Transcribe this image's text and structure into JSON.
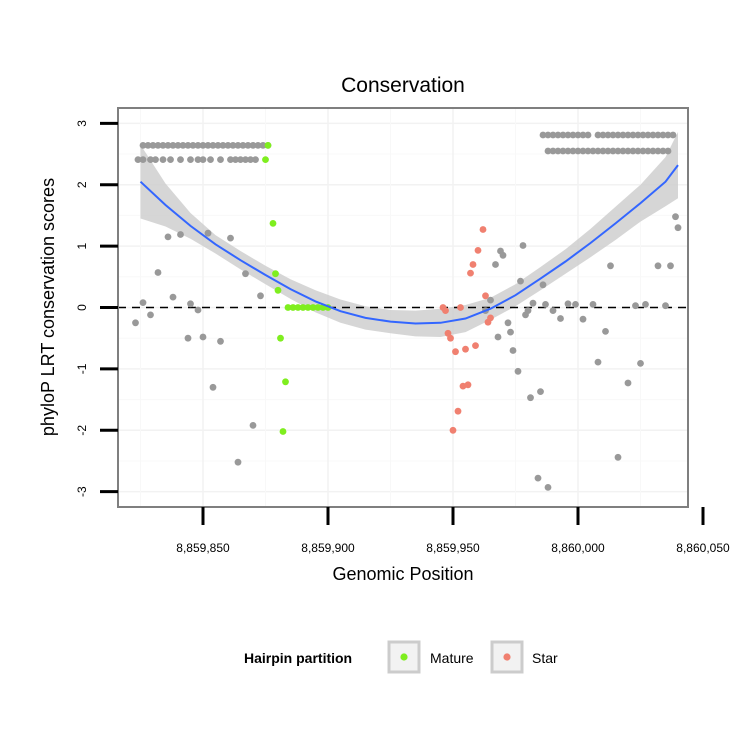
{
  "chart_data": {
    "type": "scatter",
    "title": "Conservation",
    "xlabel": "Genomic Position",
    "ylabel": "phyloP LRT conservation scores",
    "xlim": [
      8859816,
      8860044
    ],
    "ylim": [
      -3.25,
      3.25
    ],
    "x_ticks": [
      8859850,
      8859900,
      8859950,
      8860000,
      8860050
    ],
    "x_tick_labels": [
      "8,859,850",
      "8,859,900",
      "8,859,950",
      "8,860,000",
      "8,860,050"
    ],
    "y_ticks": [
      -3,
      -2,
      -1,
      0,
      1,
      2,
      3
    ],
    "y_tick_labels": [
      "-3",
      "-2",
      "-1",
      "0",
      "1",
      "2",
      "3"
    ],
    "reference_line": {
      "y": 0,
      "style": "dashed"
    },
    "grid": true,
    "legend": {
      "title": "Hairpin partition",
      "position": "bottom",
      "entries": [
        {
          "label": "Mature",
          "color": "#7FEE1F"
        },
        {
          "label": "Star",
          "color": "#F08070"
        }
      ]
    },
    "colors": {
      "other": "#999999",
      "mature": "#7FEE1F",
      "star": "#F08070",
      "smooth": "#3366FF",
      "band": "#CCCCCC"
    },
    "series": [
      {
        "name": "Other",
        "color": "#999999",
        "points": [
          [
            8859826,
            2.64
          ],
          [
            8859828,
            2.64
          ],
          [
            8859830,
            2.64
          ],
          [
            8859832,
            2.64
          ],
          [
            8859834,
            2.64
          ],
          [
            8859836,
            2.64
          ],
          [
            8859838,
            2.64
          ],
          [
            8859840,
            2.64
          ],
          [
            8859842,
            2.64
          ],
          [
            8859844,
            2.64
          ],
          [
            8859846,
            2.64
          ],
          [
            8859848,
            2.64
          ],
          [
            8859850,
            2.64
          ],
          [
            8859852,
            2.64
          ],
          [
            8859854,
            2.64
          ],
          [
            8859856,
            2.64
          ],
          [
            8859858,
            2.64
          ],
          [
            8859860,
            2.64
          ],
          [
            8859862,
            2.64
          ],
          [
            8859864,
            2.64
          ],
          [
            8859866,
            2.64
          ],
          [
            8859868,
            2.64
          ],
          [
            8859870,
            2.64
          ],
          [
            8859872,
            2.64
          ],
          [
            8859874,
            2.64
          ],
          [
            8859876,
            2.64
          ],
          [
            8859824,
            2.41
          ],
          [
            8859826,
            2.41
          ],
          [
            8859829,
            2.41
          ],
          [
            8859831,
            2.41
          ],
          [
            8859834,
            2.41
          ],
          [
            8859837,
            2.41
          ],
          [
            8859841,
            2.41
          ],
          [
            8859845,
            2.41
          ],
          [
            8859848,
            2.41
          ],
          [
            8859850,
            2.41
          ],
          [
            8859853,
            2.41
          ],
          [
            8859857,
            2.41
          ],
          [
            8859861,
            2.41
          ],
          [
            8859863,
            2.41
          ],
          [
            8859865,
            2.41
          ],
          [
            8859867,
            2.41
          ],
          [
            8859869,
            2.41
          ],
          [
            8859871,
            2.41
          ],
          [
            8859986,
            2.81
          ],
          [
            8859988,
            2.81
          ],
          [
            8859990,
            2.81
          ],
          [
            8859992,
            2.81
          ],
          [
            8859994,
            2.81
          ],
          [
            8859996,
            2.81
          ],
          [
            8859998,
            2.81
          ],
          [
            8860000,
            2.81
          ],
          [
            8860002,
            2.81
          ],
          [
            8860004,
            2.81
          ],
          [
            8860008,
            2.81
          ],
          [
            8860010,
            2.81
          ],
          [
            8860012,
            2.81
          ],
          [
            8860014,
            2.81
          ],
          [
            8860016,
            2.81
          ],
          [
            8860018,
            2.81
          ],
          [
            8860020,
            2.81
          ],
          [
            8860022,
            2.81
          ],
          [
            8860024,
            2.81
          ],
          [
            8860026,
            2.81
          ],
          [
            8860028,
            2.81
          ],
          [
            8860030,
            2.81
          ],
          [
            8860032,
            2.81
          ],
          [
            8860034,
            2.81
          ],
          [
            8860036,
            2.81
          ],
          [
            8860038,
            2.81
          ],
          [
            8859988,
            2.55
          ],
          [
            8859990,
            2.55
          ],
          [
            8859992,
            2.55
          ],
          [
            8859994,
            2.55
          ],
          [
            8859996,
            2.55
          ],
          [
            8859998,
            2.55
          ],
          [
            8860000,
            2.55
          ],
          [
            8860002,
            2.55
          ],
          [
            8860004,
            2.55
          ],
          [
            8860006,
            2.55
          ],
          [
            8860008,
            2.55
          ],
          [
            8860010,
            2.55
          ],
          [
            8860012,
            2.55
          ],
          [
            8860014,
            2.55
          ],
          [
            8860016,
            2.55
          ],
          [
            8860018,
            2.55
          ],
          [
            8860020,
            2.55
          ],
          [
            8860022,
            2.55
          ],
          [
            8860024,
            2.55
          ],
          [
            8860026,
            2.55
          ],
          [
            8860028,
            2.55
          ],
          [
            8860030,
            2.55
          ],
          [
            8860032,
            2.55
          ],
          [
            8860034,
            2.55
          ],
          [
            8860036,
            2.55
          ],
          [
            8859823,
            -0.25
          ],
          [
            8859826,
            0.08
          ],
          [
            8859829,
            -0.12
          ],
          [
            8859832,
            0.57
          ],
          [
            8859836,
            1.15
          ],
          [
            8859838,
            0.17
          ],
          [
            8859841,
            1.19
          ],
          [
            8859844,
            -0.5
          ],
          [
            8859845,
            0.06
          ],
          [
            8859848,
            -0.04
          ],
          [
            8859850,
            -0.48
          ],
          [
            8859852,
            1.21
          ],
          [
            8859854,
            -1.3
          ],
          [
            8859857,
            -0.55
          ],
          [
            8859861,
            1.13
          ],
          [
            8859864,
            -2.52
          ],
          [
            8859867,
            0.55
          ],
          [
            8859870,
            -1.92
          ],
          [
            8859873,
            0.19
          ],
          [
            8859963,
            -0.05
          ],
          [
            8859965,
            0.12
          ],
          [
            8859967,
            0.7
          ],
          [
            8859968,
            -0.48
          ],
          [
            8859969,
            0.92
          ],
          [
            8859970,
            0.85
          ],
          [
            8859972,
            -0.25
          ],
          [
            8859973,
            -0.4
          ],
          [
            8859974,
            -0.7
          ],
          [
            8859976,
            -1.04
          ],
          [
            8859977,
            0.43
          ],
          [
            8859978,
            1.01
          ],
          [
            8859979,
            -0.12
          ],
          [
            8859980,
            -0.05
          ],
          [
            8859981,
            -1.47
          ],
          [
            8859982,
            0.07
          ],
          [
            8859984,
            -2.78
          ],
          [
            8859985,
            -1.37
          ],
          [
            8859986,
            0.37
          ],
          [
            8859987,
            0.05
          ],
          [
            8859988,
            -2.93
          ],
          [
            8859990,
            -0.05
          ],
          [
            8859993,
            -0.18
          ],
          [
            8859996,
            0.06
          ],
          [
            8859999,
            0.05
          ],
          [
            8860002,
            -0.19
          ],
          [
            8860006,
            0.05
          ],
          [
            8860008,
            -0.89
          ],
          [
            8860011,
            -0.39
          ],
          [
            8860013,
            0.68
          ],
          [
            8860016,
            -2.44
          ],
          [
            8860020,
            -1.23
          ],
          [
            8860023,
            0.03
          ],
          [
            8860025,
            -0.91
          ],
          [
            8860027,
            0.05
          ],
          [
            8860032,
            0.68
          ],
          [
            8860035,
            0.03
          ],
          [
            8860037,
            0.68
          ],
          [
            8860039,
            1.48
          ],
          [
            8860040,
            1.3
          ]
        ]
      },
      {
        "name": "Mature",
        "color": "#7FEE1F",
        "points": [
          [
            8859875,
            2.41
          ],
          [
            8859876,
            2.64
          ],
          [
            8859878,
            1.37
          ],
          [
            8859879,
            0.55
          ],
          [
            8859880,
            0.28
          ],
          [
            8859881,
            -0.5
          ],
          [
            8859882,
            -2.02
          ],
          [
            8859883,
            -1.21
          ],
          [
            8859884,
            0.0
          ],
          [
            8859886,
            0.0
          ],
          [
            8859888,
            0.0
          ],
          [
            8859890,
            0.0
          ],
          [
            8859892,
            0.0
          ],
          [
            8859894,
            0.0
          ],
          [
            8859896,
            0.0
          ],
          [
            8859898,
            0.0
          ],
          [
            8859900,
            0.0
          ]
        ]
      },
      {
        "name": "Star",
        "color": "#F08070",
        "points": [
          [
            8859946,
            0.0
          ],
          [
            8859947,
            -0.05
          ],
          [
            8859948,
            -0.42
          ],
          [
            8859949,
            -0.5
          ],
          [
            8859950,
            -2.0
          ],
          [
            8859951,
            -0.72
          ],
          [
            8859952,
            -1.69
          ],
          [
            8859953,
            0.0
          ],
          [
            8859954,
            -1.28
          ],
          [
            8859955,
            -0.68
          ],
          [
            8859956,
            -1.26
          ],
          [
            8859957,
            0.56
          ],
          [
            8859958,
            0.7
          ],
          [
            8859959,
            -0.62
          ],
          [
            8859960,
            0.93
          ],
          [
            8859962,
            1.27
          ],
          [
            8859963,
            0.19
          ],
          [
            8859964,
            -0.24
          ],
          [
            8859965,
            -0.17
          ]
        ]
      }
    ],
    "smooth": {
      "method": "loess",
      "x": [
        8859825,
        8859835,
        8859845,
        8859855,
        8859865,
        8859875,
        8859885,
        8859895,
        8859905,
        8859915,
        8859925,
        8859935,
        8859945,
        8859955,
        8859965,
        8859975,
        8859985,
        8859995,
        8860005,
        8860015,
        8860025,
        8860035,
        8860040
      ],
      "y": [
        2.05,
        1.67,
        1.33,
        1.03,
        0.77,
        0.53,
        0.3,
        0.1,
        -0.06,
        -0.17,
        -0.23,
        -0.26,
        -0.25,
        -0.18,
        -0.02,
        0.2,
        0.47,
        0.75,
        1.05,
        1.37,
        1.7,
        2.05,
        2.32
      ],
      "lower": [
        1.45,
        1.32,
        1.12,
        0.88,
        0.62,
        0.38,
        0.14,
        -0.08,
        -0.25,
        -0.36,
        -0.42,
        -0.47,
        -0.48,
        -0.4,
        -0.2,
        0.02,
        0.28,
        0.55,
        0.82,
        1.1,
        1.4,
        1.65,
        1.78
      ],
      "upper": [
        2.65,
        2.02,
        1.54,
        1.18,
        0.92,
        0.68,
        0.46,
        0.28,
        0.13,
        0.02,
        -0.04,
        -0.05,
        -0.02,
        0.04,
        0.16,
        0.38,
        0.66,
        0.95,
        1.28,
        1.64,
        2.0,
        2.45,
        2.86
      ]
    }
  }
}
